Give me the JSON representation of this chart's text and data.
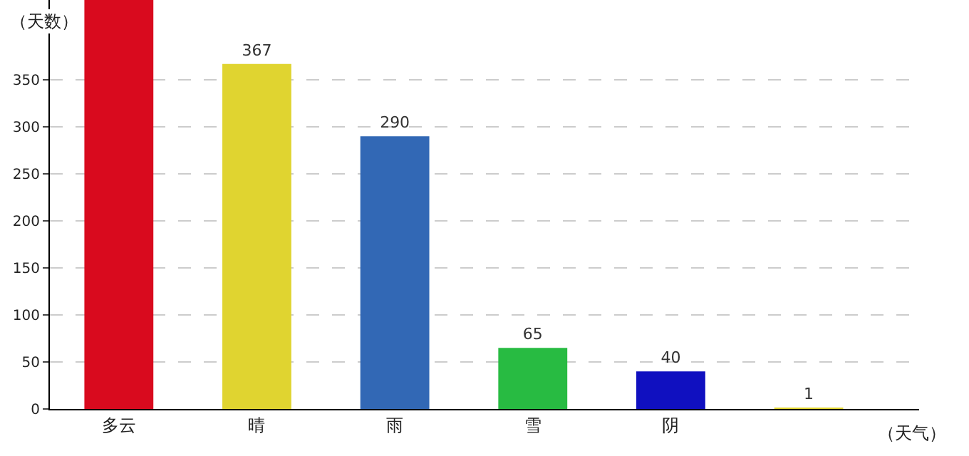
{
  "chart_data": {
    "type": "bar",
    "xlabel": "（天气）",
    "ylabel": "（天数）",
    "categories": [
      "多云",
      "晴",
      "雨",
      "雪",
      "阴",
      null
    ],
    "values": [
      435,
      367,
      290,
      65,
      40,
      1
    ],
    "colors": [
      "#d90a1e",
      "#e0d430",
      "#3268b5",
      "#28bb42",
      "#1010c0",
      "#e0d430"
    ],
    "value_labels": [
      null,
      "367",
      "290",
      "65",
      "40",
      "1"
    ],
    "ylim": [
      0,
      435
    ],
    "yticks": [
      0,
      50,
      100,
      150,
      200,
      250,
      300,
      350
    ],
    "grid": "y"
  }
}
